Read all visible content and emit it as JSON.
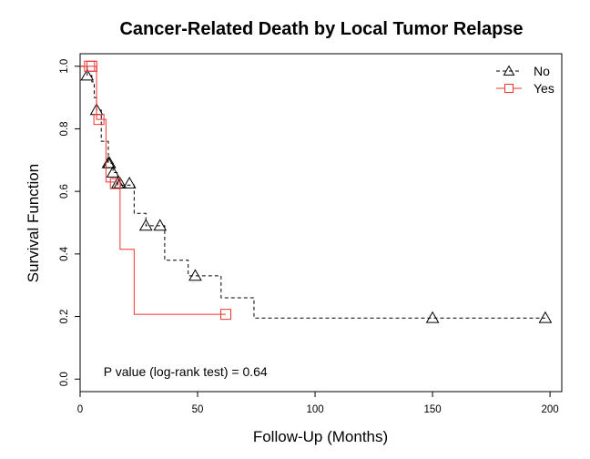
{
  "chart_data": {
    "type": "line",
    "title": "Cancer-Related Death by Local Tumor Relapse",
    "xlabel": "Follow-Up (Months)",
    "ylabel": "Survival Function",
    "xlim": [
      0,
      205
    ],
    "ylim": [
      -0.04,
      1.04
    ],
    "x_ticks": [
      0,
      50,
      100,
      150,
      200
    ],
    "y_ticks": [
      0.0,
      0.2,
      0.4,
      0.6,
      0.8,
      1.0
    ],
    "y_tick_labels": [
      "0.0",
      "0.2",
      "0.4",
      "0.6",
      "0.8",
      "1.0"
    ],
    "grid": false,
    "legend_position": "top-right",
    "annotation": {
      "text": "P value (log-rank test) =    0.64",
      "x": 10,
      "y": 0.01
    },
    "series": [
      {
        "name": "No",
        "color": "#000000",
        "line_style": "dashed",
        "marker": "triangle",
        "steps": [
          [
            0,
            1.0
          ],
          [
            3,
            0.97
          ],
          [
            5,
            0.95
          ],
          [
            6,
            0.9
          ],
          [
            7,
            0.86
          ],
          [
            9,
            0.76
          ],
          [
            12,
            0.69
          ],
          [
            14,
            0.66
          ],
          [
            16,
            0.62
          ],
          [
            23,
            0.53
          ],
          [
            28,
            0.49
          ],
          [
            36,
            0.38
          ],
          [
            46,
            0.33
          ],
          [
            60,
            0.26
          ],
          [
            74,
            0.195
          ],
          [
            198,
            0.195
          ]
        ],
        "censored": [
          [
            3,
            0.97
          ],
          [
            7,
            0.86
          ],
          [
            12,
            0.69
          ],
          [
            12.5,
            0.69
          ],
          [
            14,
            0.66
          ],
          [
            16,
            0.625
          ],
          [
            17,
            0.625
          ],
          [
            21,
            0.625
          ],
          [
            28,
            0.49
          ],
          [
            34,
            0.49
          ],
          [
            49,
            0.33
          ],
          [
            150,
            0.195
          ],
          [
            198,
            0.195
          ]
        ]
      },
      {
        "name": "Yes",
        "color": "#ee3333",
        "line_style": "solid",
        "marker": "square",
        "steps": [
          [
            0,
            1.0
          ],
          [
            7,
            0.83
          ],
          [
            11,
            0.63
          ],
          [
            17,
            0.415
          ],
          [
            23,
            0.207
          ],
          [
            62,
            0.207
          ]
        ],
        "censored": [
          [
            4,
            1.0
          ],
          [
            5,
            1.0
          ],
          [
            8,
            0.83
          ],
          [
            15,
            0.625
          ],
          [
            62,
            0.207
          ]
        ]
      }
    ]
  }
}
